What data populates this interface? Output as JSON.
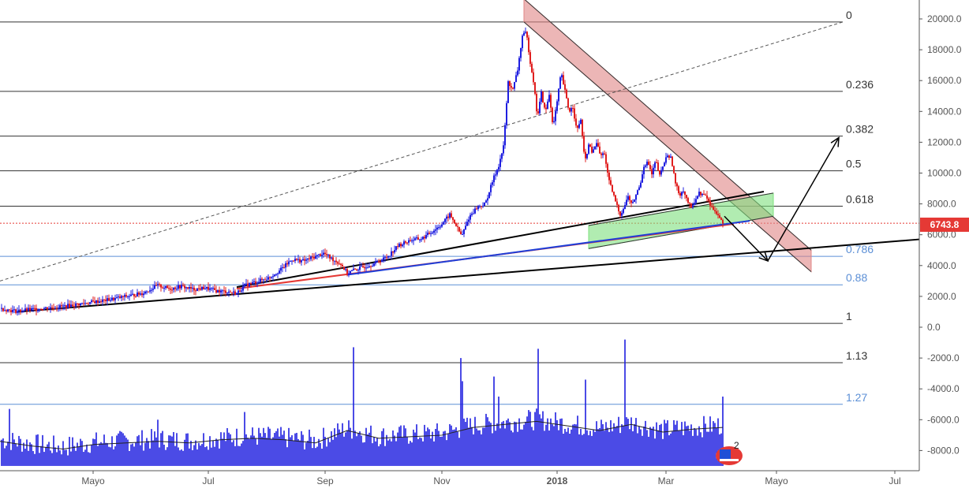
{
  "chart_data": {
    "type": "candlestick",
    "x_axis": {
      "tick_labels": [
        "Mayo",
        "Jul",
        "Sep",
        "Nov",
        "2018",
        "Mar",
        "Mayo",
        "Jul"
      ]
    },
    "y_axis": {
      "range": [
        -9000,
        21000
      ],
      "tick_labels": [
        "20000.0",
        "18000.0",
        "16000.0",
        "14000.0",
        "12000.0",
        "10000.0",
        "8000.0",
        "6000.0",
        "4000.0",
        "2000.0",
        "0.0",
        "-2000.0",
        "-4000.0",
        "-6000.0",
        "-8000.0"
      ]
    },
    "last_price": {
      "label": "6743.8",
      "value": 6743.8,
      "color": "#e53935"
    },
    "fib_levels": [
      {
        "label": "0",
        "value": 19800,
        "color": "#333333"
      },
      {
        "label": "0.236",
        "value": 15300,
        "color": "#333333"
      },
      {
        "label": "0.382",
        "value": 12400,
        "color": "#333333"
      },
      {
        "label": "0.5",
        "value": 10150,
        "color": "#333333"
      },
      {
        "label": "0.618",
        "value": 7850,
        "color": "#333333"
      },
      {
        "label": "0.786",
        "value": 4600,
        "color": "#5b8fd6"
      },
      {
        "label": "0.88",
        "value": 2750,
        "color": "#5b8fd6"
      },
      {
        "label": "1",
        "value": 250,
        "color": "#333333"
      },
      {
        "label": "1.13",
        "value": -2300,
        "color": "#333333"
      },
      {
        "label": "1.27",
        "value": -5000,
        "color": "#5b8fd6"
      }
    ],
    "price_path": [
      [
        0,
        1200
      ],
      [
        20,
        1050
      ],
      [
        40,
        1150
      ],
      [
        60,
        1250
      ],
      [
        80,
        1350
      ],
      [
        100,
        1500
      ],
      [
        120,
        1650
      ],
      [
        140,
        1800
      ],
      [
        160,
        2000
      ],
      [
        180,
        2200
      ],
      [
        200,
        2700
      ],
      [
        215,
        2500
      ],
      [
        230,
        2650
      ],
      [
        245,
        2450
      ],
      [
        260,
        2550
      ],
      [
        275,
        2350
      ],
      [
        290,
        2300
      ],
      [
        300,
        2200
      ],
      [
        310,
        2700
      ],
      [
        325,
        2950
      ],
      [
        340,
        3200
      ],
      [
        355,
        3700
      ],
      [
        370,
        4400
      ],
      [
        385,
        4300
      ],
      [
        400,
        4600
      ],
      [
        410,
        4800
      ],
      [
        420,
        4450
      ],
      [
        432,
        4100
      ],
      [
        440,
        3500
      ],
      [
        448,
        3700
      ],
      [
        460,
        3900
      ],
      [
        475,
        4150
      ],
      [
        490,
        4550
      ],
      [
        505,
        5300
      ],
      [
        520,
        5650
      ],
      [
        535,
        5750
      ],
      [
        550,
        6300
      ],
      [
        560,
        6700
      ],
      [
        570,
        7300
      ],
      [
        578,
        6600
      ],
      [
        585,
        5900
      ],
      [
        595,
        7200
      ],
      [
        605,
        7800
      ],
      [
        615,
        8000
      ],
      [
        625,
        9600
      ],
      [
        632,
        10500
      ],
      [
        638,
        11700
      ],
      [
        644,
        15900
      ],
      [
        650,
        15400
      ],
      [
        656,
        16700
      ],
      [
        662,
        18900
      ],
      [
        667,
        19100
      ],
      [
        672,
        17200
      ],
      [
        676,
        16000
      ],
      [
        681,
        13600
      ],
      [
        686,
        15200
      ],
      [
        691,
        13900
      ],
      [
        696,
        15100
      ],
      [
        701,
        13000
      ],
      [
        706,
        14600
      ],
      [
        711,
        16500
      ],
      [
        716,
        15300
      ],
      [
        721,
        14000
      ],
      [
        726,
        14300
      ],
      [
        731,
        12700
      ],
      [
        736,
        13500
      ],
      [
        741,
        10700
      ],
      [
        746,
        11800
      ],
      [
        751,
        11300
      ],
      [
        756,
        12000
      ],
      [
        761,
        11100
      ],
      [
        766,
        11300
      ],
      [
        771,
        9600
      ],
      [
        776,
        8800
      ],
      [
        781,
        8000
      ],
      [
        786,
        7300
      ],
      [
        791,
        7800
      ],
      [
        796,
        8500
      ],
      [
        801,
        7900
      ],
      [
        806,
        8600
      ],
      [
        811,
        9200
      ],
      [
        816,
        10500
      ],
      [
        821,
        10700
      ],
      [
        826,
        9900
      ],
      [
        831,
        10800
      ],
      [
        836,
        9800
      ],
      [
        841,
        10600
      ],
      [
        846,
        11200
      ],
      [
        851,
        10900
      ],
      [
        856,
        9300
      ],
      [
        861,
        8600
      ],
      [
        866,
        8900
      ],
      [
        871,
        8200
      ],
      [
        876,
        7700
      ],
      [
        881,
        8300
      ],
      [
        886,
        8700
      ],
      [
        891,
        8600
      ],
      [
        896,
        8400
      ],
      [
        901,
        7800
      ],
      [
        906,
        7600
      ],
      [
        911,
        7200
      ],
      [
        916,
        6700
      ]
    ],
    "volume_path": [
      [
        0,
        -7200
      ],
      [
        40,
        -7500
      ],
      [
        80,
        -7700
      ],
      [
        120,
        -7400
      ],
      [
        160,
        -7300
      ],
      [
        200,
        -7200
      ],
      [
        240,
        -7300
      ],
      [
        280,
        -7100
      ],
      [
        320,
        -7000
      ],
      [
        360,
        -7100
      ],
      [
        400,
        -7300
      ],
      [
        440,
        -6500
      ],
      [
        480,
        -7000
      ],
      [
        520,
        -6900
      ],
      [
        560,
        -6800
      ],
      [
        600,
        -6300
      ],
      [
        640,
        -6100
      ],
      [
        680,
        -5900
      ],
      [
        720,
        -6200
      ],
      [
        760,
        -6500
      ],
      [
        800,
        -6100
      ],
      [
        840,
        -6600
      ],
      [
        880,
        -6400
      ],
      [
        916,
        -6300
      ]
    ],
    "volume_spikes": [
      [
        12,
        -5300
      ],
      [
        447,
        -1300
      ],
      [
        584,
        -2000
      ],
      [
        626,
        -3200
      ],
      [
        682,
        -1400
      ],
      [
        742,
        -3400
      ],
      [
        792,
        -800
      ],
      [
        586,
        -3500
      ],
      [
        632,
        -4500
      ],
      [
        915,
        -4500
      ],
      [
        310,
        -5500
      ],
      [
        200,
        -6000
      ]
    ],
    "trend_lines": [
      {
        "from": [
          22,
          1000
        ],
        "to": [
          1165,
          5700
        ],
        "color": "#000000"
      },
      {
        "from": [
          300,
          2600
        ],
        "to": [
          968,
          8800
        ],
        "color": "#000000"
      },
      {
        "from": [
          300,
          2500
        ],
        "to": [
          930,
          6700
        ],
        "color": "#e53935"
      },
      {
        "from": [
          440,
          3400
        ],
        "to": [
          950,
          6900
        ],
        "color": "#1f3fd8"
      },
      {
        "from": [
          0,
          3000
        ],
        "to": [
          1068,
          19800
        ],
        "color": "#555555",
        "dashed": true
      }
    ],
    "channels": [
      {
        "color": "#e08585",
        "points": [
          [
            664,
            19800
          ],
          [
            1028,
            3600
          ],
          [
            1028,
            5000
          ],
          [
            664,
            21300
          ]
        ]
      },
      {
        "color": "#7de07d",
        "points": [
          [
            746,
            5100
          ],
          [
            980,
            7200
          ],
          [
            980,
            8700
          ],
          [
            746,
            6600
          ]
        ]
      }
    ],
    "arrows": [
      {
        "from": [
          918,
          7200
        ],
        "to": [
          973,
          4300
        ]
      },
      {
        "from": [
          973,
          4300
        ],
        "to": [
          1063,
          12300
        ]
      }
    ]
  },
  "overlay": {
    "badge_number": "2"
  }
}
